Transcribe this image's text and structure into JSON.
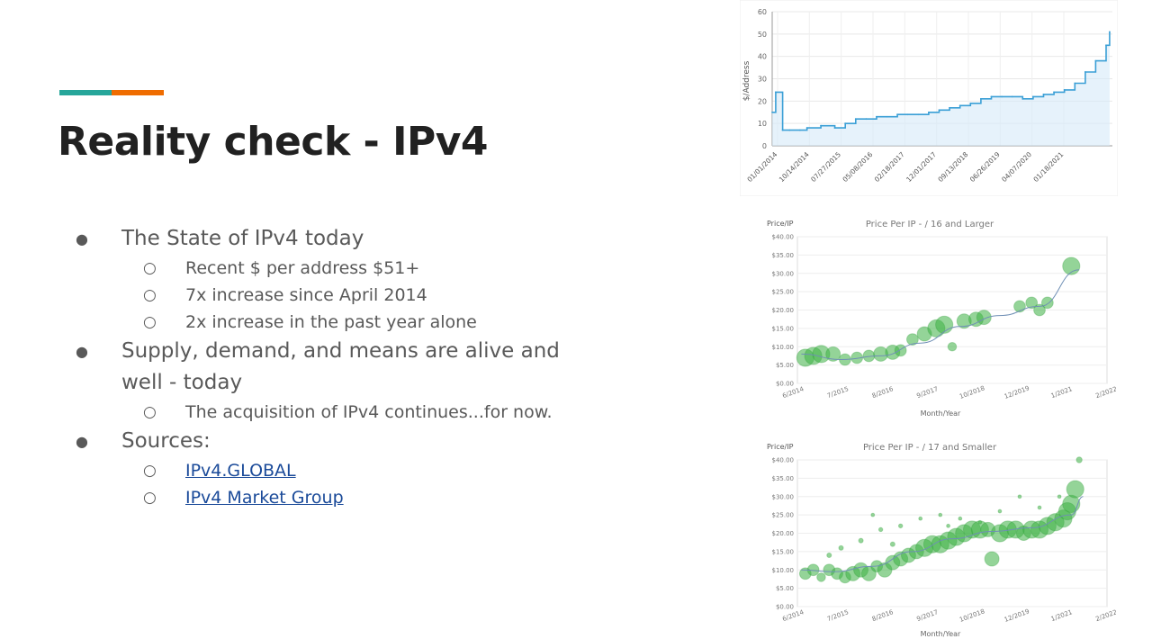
{
  "slide": {
    "title": "Reality check - IPv4",
    "bullets": [
      {
        "text": "The State of IPv4 today",
        "sub": [
          "Recent $ per address $51+",
          "7x increase since April 2014",
          "2x increase in the past year alone"
        ]
      },
      {
        "text": "Supply, demand, and means are alive and well - today",
        "sub": [
          "The acquisition of IPv4 continues...for now."
        ]
      },
      {
        "text": "Sources:",
        "links": [
          "IPv4.GLOBAL",
          "IPv4 Market Group"
        ]
      }
    ]
  },
  "colors": {
    "teal": "#26a69a",
    "orange": "#ef6c00",
    "line_blue": "#3a9fd6",
    "bubble_green": "#3cb043"
  },
  "chart_data": [
    {
      "type": "line",
      "title": "",
      "xlabel": "",
      "ylabel": "$/Address",
      "ylim": [
        0,
        60
      ],
      "yticks": [
        0,
        10,
        20,
        30,
        40,
        50,
        60
      ],
      "xtick_labels": [
        "01/01/2014",
        "10/14/2014",
        "07/27/2015",
        "05/08/2016",
        "02/18/2017",
        "12/01/2017",
        "09/13/2018",
        "06/26/2019",
        "04/07/2020",
        "01/18/2021"
      ],
      "x": [
        "2014-01",
        "2014-02",
        "2014-04",
        "2014-06",
        "2014-09",
        "2014-11",
        "2015-03",
        "2015-07",
        "2015-10",
        "2016-01",
        "2016-04",
        "2016-07",
        "2016-10",
        "2017-01",
        "2017-04",
        "2017-07",
        "2017-10",
        "2018-01",
        "2018-04",
        "2018-07",
        "2018-10",
        "2019-01",
        "2019-04",
        "2019-07",
        "2019-10",
        "2020-01",
        "2020-04",
        "2020-07",
        "2020-10",
        "2021-01",
        "2021-04",
        "2021-07",
        "2021-10",
        "2022-01",
        "2022-02"
      ],
      "values": [
        15,
        24,
        7,
        7,
        7,
        8,
        9,
        8,
        10,
        12,
        12,
        13,
        13,
        14,
        14,
        14,
        15,
        16,
        17,
        18,
        19,
        21,
        22,
        22,
        22,
        21,
        22,
        23,
        24,
        25,
        28,
        33,
        38,
        45,
        51
      ],
      "grid": true
    },
    {
      "type": "scatter",
      "title": "Price Per IP - / 16 and Larger",
      "xlabel": "Month/Year",
      "ylabel": "Price/IP",
      "ylim": [
        0,
        40
      ],
      "yticks": [
        "$0.00",
        "$5.00",
        "$10.00",
        "$15.00",
        "$20.00",
        "$25.00",
        "$30.00",
        "$35.00",
        "$40.00"
      ],
      "xtick_labels": [
        "6/2014",
        "7/2015",
        "8/2016",
        "9/2017",
        "10/2018",
        "12/2019",
        "1/2021",
        "2/2022"
      ],
      "points": [
        [
          2014.6,
          7,
          3
        ],
        [
          2014.8,
          7.5,
          3
        ],
        [
          2015.0,
          8,
          3
        ],
        [
          2015.3,
          8,
          2.5
        ],
        [
          2015.6,
          6.5,
          2
        ],
        [
          2015.9,
          7,
          2
        ],
        [
          2016.2,
          7.5,
          2
        ],
        [
          2016.5,
          8,
          2.5
        ],
        [
          2016.8,
          8.5,
          2.5
        ],
        [
          2017.0,
          9,
          2
        ],
        [
          2017.3,
          12,
          2
        ],
        [
          2017.6,
          13.5,
          2.5
        ],
        [
          2017.9,
          15,
          3
        ],
        [
          2018.1,
          16,
          3
        ],
        [
          2018.3,
          10,
          1.5
        ],
        [
          2018.6,
          17,
          2.5
        ],
        [
          2018.9,
          17.5,
          2.5
        ],
        [
          2019.1,
          18,
          2.5
        ],
        [
          2020.0,
          21,
          2
        ],
        [
          2020.3,
          22,
          2
        ],
        [
          2020.5,
          20,
          2
        ],
        [
          2020.7,
          22,
          2
        ],
        [
          2021.3,
          32,
          3
        ]
      ],
      "trend": [
        [
          2014.5,
          8
        ],
        [
          2015.5,
          6.5
        ],
        [
          2016.5,
          7.5
        ],
        [
          2017.5,
          11
        ],
        [
          2018.5,
          15.5
        ],
        [
          2019.5,
          18.5
        ],
        [
          2020.5,
          21
        ],
        [
          2021.5,
          31
        ]
      ],
      "grid": true
    },
    {
      "type": "scatter",
      "title": "Price Per IP - / 17 and Smaller",
      "xlabel": "Month/Year",
      "ylabel": "Price/IP",
      "ylim": [
        0,
        40
      ],
      "yticks": [
        "$0.00",
        "$5.00",
        "$10.00",
        "$15.00",
        "$20.00",
        "$25.00",
        "$30.00",
        "$35.00",
        "$40.00"
      ],
      "xtick_labels": [
        "6/2014",
        "7/2015",
        "8/2016",
        "9/2017",
        "10/2018",
        "12/2019",
        "1/2021",
        "2/2022"
      ],
      "points": [
        [
          2014.6,
          9,
          2
        ],
        [
          2014.8,
          10,
          2
        ],
        [
          2015.0,
          8,
          1.5
        ],
        [
          2015.2,
          10,
          2
        ],
        [
          2015.4,
          9,
          2
        ],
        [
          2015.6,
          8,
          2
        ],
        [
          2015.8,
          9,
          2.5
        ],
        [
          2016.0,
          10,
          2.5
        ],
        [
          2016.2,
          9,
          2.5
        ],
        [
          2016.4,
          11,
          2
        ],
        [
          2016.6,
          10,
          2.5
        ],
        [
          2016.8,
          12,
          2.5
        ],
        [
          2017.0,
          13,
          2.5
        ],
        [
          2017.2,
          14,
          2.5
        ],
        [
          2017.4,
          15,
          2.5
        ],
        [
          2017.6,
          16,
          3
        ],
        [
          2017.8,
          17,
          3
        ],
        [
          2018.0,
          17,
          3
        ],
        [
          2018.2,
          18,
          3
        ],
        [
          2018.4,
          19,
          3
        ],
        [
          2018.6,
          20,
          3
        ],
        [
          2018.8,
          21,
          3
        ],
        [
          2019.0,
          21,
          3
        ],
        [
          2019.2,
          21,
          2.5
        ],
        [
          2019.3,
          13,
          2.5
        ],
        [
          2019.5,
          20,
          3
        ],
        [
          2019.7,
          21,
          3
        ],
        [
          2019.9,
          21,
          3
        ],
        [
          2020.1,
          20,
          2.5
        ],
        [
          2020.3,
          21,
          3
        ],
        [
          2020.5,
          21,
          3
        ],
        [
          2020.7,
          22,
          3
        ],
        [
          2020.9,
          23,
          3
        ],
        [
          2021.1,
          24,
          3
        ],
        [
          2021.2,
          26,
          3
        ],
        [
          2021.3,
          28,
          3
        ],
        [
          2021.4,
          32,
          3
        ],
        [
          2021.5,
          40,
          1
        ],
        [
          2015.5,
          16,
          0.8
        ],
        [
          2016.0,
          18,
          0.8
        ],
        [
          2016.3,
          25,
          0.6
        ],
        [
          2016.5,
          21,
          0.7
        ],
        [
          2017.0,
          22,
          0.7
        ],
        [
          2017.5,
          24,
          0.6
        ],
        [
          2018.0,
          25,
          0.6
        ],
        [
          2018.5,
          24,
          0.6
        ],
        [
          2019.0,
          23,
          0.6
        ],
        [
          2019.5,
          26,
          0.6
        ],
        [
          2020.0,
          30,
          0.6
        ],
        [
          2020.5,
          27,
          0.6
        ],
        [
          2021.0,
          30,
          0.6
        ],
        [
          2015.2,
          14,
          0.8
        ],
        [
          2016.8,
          17,
          0.8
        ],
        [
          2018.2,
          22,
          0.6
        ]
      ],
      "trend": [
        [
          2014.5,
          10
        ],
        [
          2015.3,
          9.5
        ],
        [
          2016.3,
          11
        ],
        [
          2017.3,
          15
        ],
        [
          2018.3,
          18.5
        ],
        [
          2019.3,
          20.5
        ],
        [
          2020.3,
          21.5
        ],
        [
          2021.3,
          25
        ],
        [
          2021.6,
          30
        ]
      ],
      "grid": true
    }
  ]
}
